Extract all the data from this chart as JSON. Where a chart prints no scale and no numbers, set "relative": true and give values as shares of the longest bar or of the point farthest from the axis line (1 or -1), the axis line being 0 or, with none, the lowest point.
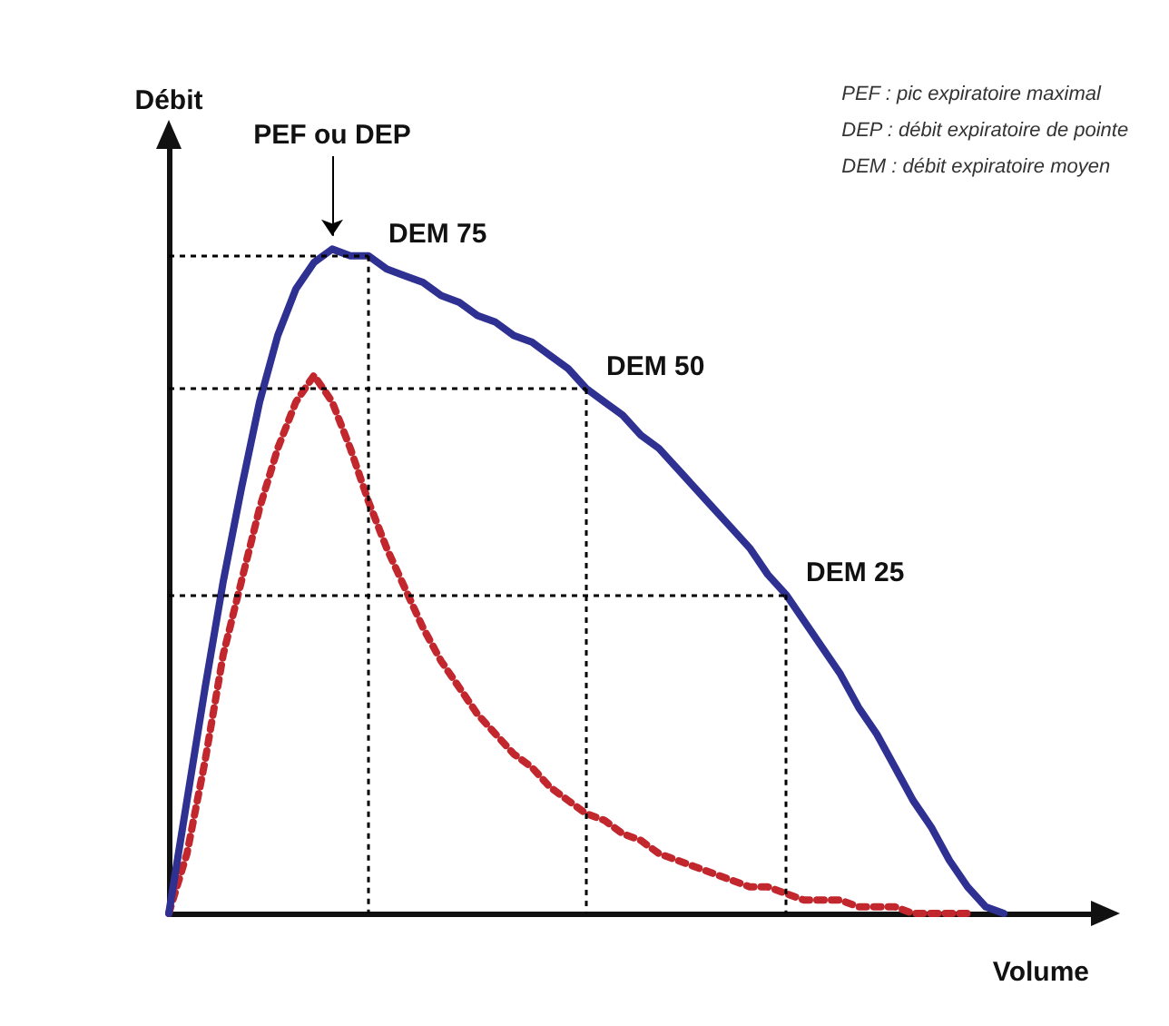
{
  "chart_data": {
    "type": "line",
    "relative": true,
    "xlabel": "Volume",
    "ylabel": "Débit",
    "marker": "none",
    "categories": [
      null,
      null,
      null,
      null,
      null,
      null,
      null,
      null,
      null,
      null,
      null,
      null,
      null,
      null,
      null,
      null,
      null,
      null,
      null,
      null,
      null,
      null,
      null,
      null,
      null,
      null,
      null,
      null,
      null,
      null,
      null,
      null,
      null,
      null,
      null,
      null,
      null,
      null,
      null,
      null,
      null,
      null,
      null,
      null,
      null,
      null,
      null
    ],
    "series": [
      {
        "color": "#2e3192",
        "line_style": "solid",
        "values": [
          0,
          0.17,
          0.34,
          0.5,
          0.64,
          0.77,
          0.87,
          0.94,
          0.98,
          1,
          0.99,
          0.99,
          0.97,
          0.96,
          0.95,
          0.93,
          0.92,
          0.9,
          0.89,
          0.87,
          0.86,
          0.84,
          0.82,
          0.79,
          0.77,
          0.75,
          0.72,
          0.7,
          0.67,
          0.64,
          0.61,
          0.58,
          0.55,
          0.51,
          0.48,
          0.44,
          0.4,
          0.36,
          0.31,
          0.27,
          0.22,
          0.17,
          0.13,
          0.08,
          0.04,
          0.01,
          0
        ]
      },
      {
        "color": "#c1272d",
        "line_style": "dotted",
        "values": [
          0,
          0.09,
          0.23,
          0.39,
          0.5,
          0.61,
          0.7,
          0.77,
          0.81,
          0.77,
          0.7,
          0.62,
          0.55,
          0.49,
          0.43,
          0.38,
          0.34,
          0.3,
          0.27,
          0.24,
          0.22,
          0.19,
          0.17,
          0.15,
          0.14,
          0.12,
          0.11,
          0.09,
          0.08,
          0.07,
          0.06,
          0.05,
          0.04,
          0.04,
          0.03,
          0.02,
          0.02,
          0.02,
          0.01,
          0.01,
          0.01,
          0,
          0,
          0,
          0,
          null,
          null
        ]
      }
    ],
    "annotations": [
      "PEF ou DEP",
      "DEM 75",
      "DEM 50",
      "DEM 25",
      "PEF : pic expiratoire maximal",
      "DEP : débit expiratoire de pointe",
      "DEM : débit expiratoire moyen"
    ]
  }
}
